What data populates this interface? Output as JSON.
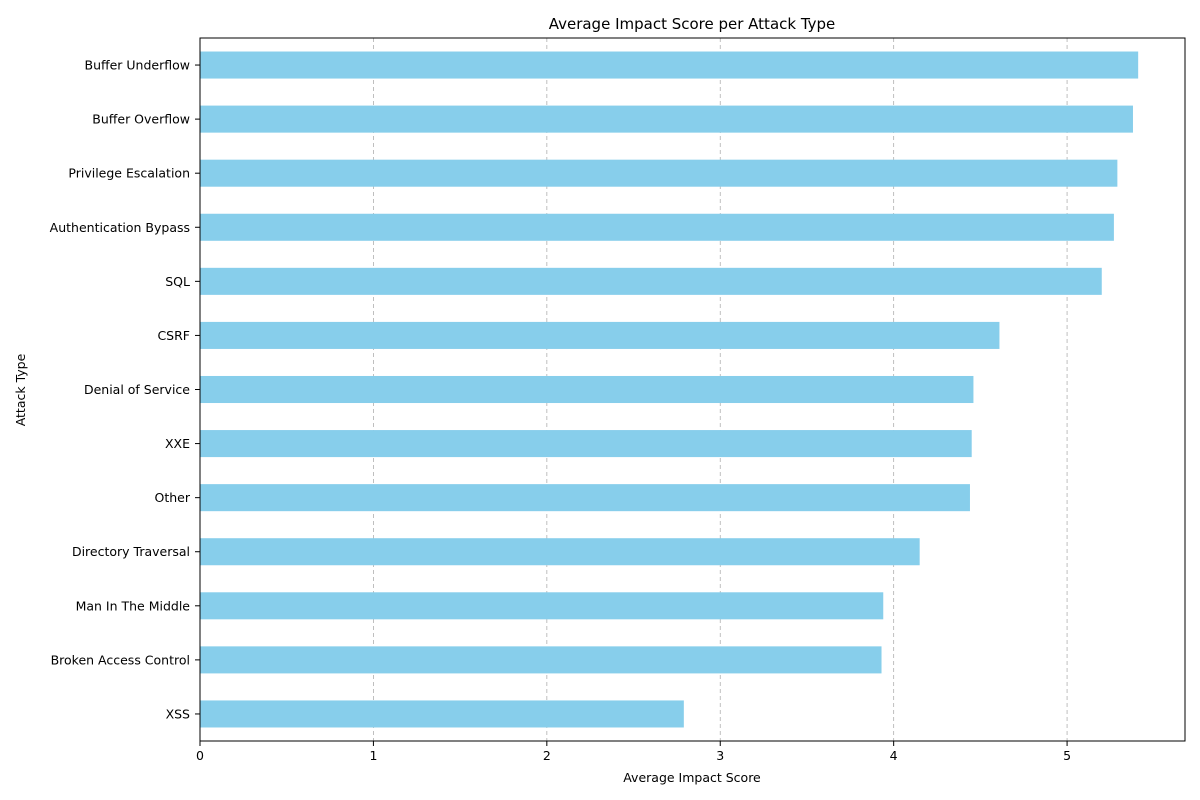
{
  "chart_data": {
    "type": "bar",
    "orientation": "horizontal",
    "title": "Average Impact Score per Attack Type",
    "xlabel": "Average Impact Score",
    "ylabel": "Attack Type",
    "categories": [
      "XSS",
      "Broken Access Control",
      "Man In The Middle",
      "Directory Traversal",
      "Other",
      "XXE",
      "Denial of Service",
      "CSRF",
      "SQL",
      "Authentication Bypass",
      "Privilege Escalation",
      "Buffer Overflow",
      "Buffer Underflow"
    ],
    "values": [
      2.79,
      3.93,
      3.94,
      4.15,
      4.44,
      4.45,
      4.46,
      4.61,
      5.2,
      5.27,
      5.29,
      5.38,
      5.41
    ],
    "xlim": [
      0,
      5.68
    ],
    "xticks": [
      "0",
      "1",
      "2",
      "3",
      "4",
      "5"
    ],
    "grid": "x-axis dashed",
    "bar_color": "#87CEEB"
  }
}
